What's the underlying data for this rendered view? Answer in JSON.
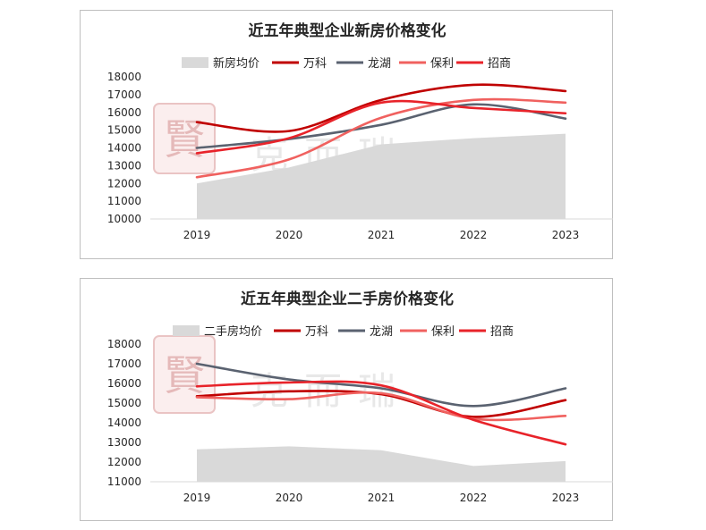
{
  "colors": {
    "area": "#d9d9d9",
    "wanke": "#c00000",
    "longhu": "#5a6270",
    "baoli": "#f0615f",
    "zhaoshang": "#e8232a",
    "watermark": "#e9c9c9"
  },
  "watermark": {
    "seal": "賢",
    "text": "克而瑞"
  },
  "chart_data": [
    {
      "type": "line",
      "title": "近五年典型企业新房价格变化",
      "categories": [
        "2019",
        "2020",
        "2021",
        "2022",
        "2023"
      ],
      "ylim": [
        10000,
        18000
      ],
      "yticks": [
        "18000",
        "17000",
        "16000",
        "15000",
        "14000",
        "13000",
        "12000",
        "11000",
        "10000"
      ],
      "area": {
        "name": "新房均价",
        "values": [
          12000,
          12900,
          14200,
          14550,
          14800
        ]
      },
      "series": [
        {
          "name": "万科",
          "key": "wanke",
          "values": [
            15450,
            14950,
            16700,
            17550,
            17200
          ]
        },
        {
          "name": "龙湖",
          "key": "longhu",
          "values": [
            14000,
            14500,
            15300,
            16450,
            15650
          ]
        },
        {
          "name": "保利",
          "key": "baoli",
          "values": [
            12350,
            13350,
            15700,
            16700,
            16550
          ]
        },
        {
          "name": "招商",
          "key": "zhaoshang",
          "values": [
            13700,
            14550,
            16550,
            16250,
            15950
          ]
        }
      ]
    },
    {
      "type": "line",
      "title": "近五年典型企业二手房价格变化",
      "categories": [
        "2019",
        "2020",
        "2021",
        "2022",
        "2023"
      ],
      "ylim": [
        11000,
        18000
      ],
      "yticks": [
        "18000",
        "17000",
        "16000",
        "15000",
        "14000",
        "13000",
        "12000",
        "11000"
      ],
      "area": {
        "name": "二手房均价",
        "values": [
          12650,
          12800,
          12600,
          11800,
          12050
        ]
      },
      "series": [
        {
          "name": "万科",
          "key": "wanke",
          "values": [
            15350,
            15600,
            15450,
            14300,
            15150
          ]
        },
        {
          "name": "龙湖",
          "key": "longhu",
          "values": [
            17000,
            16200,
            15750,
            14850,
            15750
          ]
        },
        {
          "name": "保利",
          "key": "baoli",
          "values": [
            15300,
            15200,
            15500,
            14200,
            14350
          ]
        },
        {
          "name": "招商",
          "key": "zhaoshang",
          "values": [
            15850,
            16050,
            15900,
            14150,
            12900
          ]
        }
      ]
    }
  ]
}
